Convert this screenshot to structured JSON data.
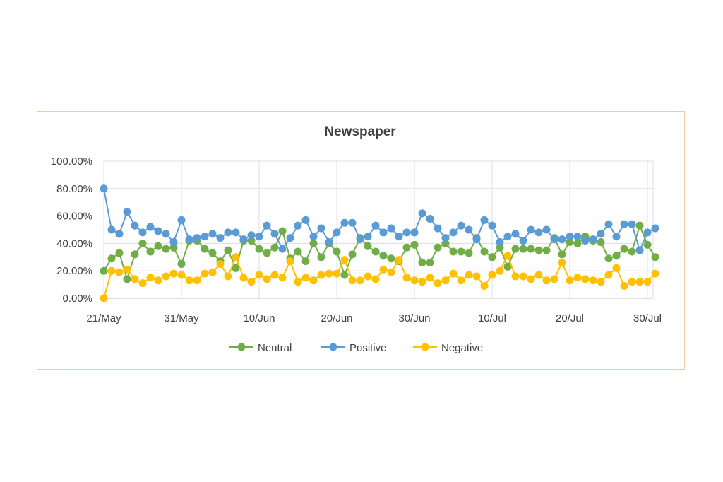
{
  "chart_data": {
    "type": "line",
    "title": "Newspaper",
    "xlabel": "",
    "ylabel": "",
    "ylim": [
      0,
      100
    ],
    "y_ticks": [
      "0.00%",
      "20.00%",
      "40.00%",
      "60.00%",
      "80.00%",
      "100.00%"
    ],
    "x_ticks": [
      "21/May",
      "31/May",
      "10/Jun",
      "20/Jun",
      "30/Jun",
      "10/Jul",
      "20/Jul",
      "30/Jul"
    ],
    "x_start": "21/May",
    "x_days": 72,
    "legend_position": "bottom",
    "grid": true,
    "series": [
      {
        "name": "Neutral",
        "color": "#70ad47",
        "values": [
          20,
          29,
          33,
          14,
          32,
          40,
          34,
          38,
          36,
          37,
          25,
          42,
          42,
          36,
          33,
          27,
          35,
          22,
          42,
          42,
          36,
          33,
          37,
          49,
          29,
          34,
          27,
          40,
          30,
          40,
          34,
          17,
          32,
          44,
          38,
          34,
          31,
          29,
          27,
          37,
          39,
          26,
          26,
          37,
          40,
          34,
          34,
          33,
          44,
          34,
          30,
          37,
          23,
          36,
          36,
          36,
          35,
          35,
          44,
          32,
          41,
          40,
          45,
          42,
          41,
          29,
          31,
          36,
          34,
          53,
          39,
          30
        ]
      },
      {
        "name": "Positive",
        "color": "#5b9bd5",
        "values": [
          80,
          50,
          47,
          63,
          53,
          48,
          52,
          49,
          47,
          41,
          57,
          43,
          44,
          45,
          47,
          44,
          48,
          48,
          43,
          46,
          45,
          53,
          47,
          36,
          44,
          53,
          57,
          45,
          51,
          41,
          48,
          55,
          55,
          43,
          45,
          53,
          48,
          51,
          45,
          48,
          48,
          62,
          58,
          51,
          44,
          48,
          53,
          50,
          43,
          57,
          53,
          41,
          45,
          47,
          42,
          50,
          48,
          50,
          43,
          43,
          45,
          45,
          42,
          43,
          47,
          54,
          45,
          54,
          54,
          35,
          48,
          51
        ]
      },
      {
        "name": "Negative",
        "color": "#ffc000",
        "values": [
          0,
          20,
          19,
          21,
          14,
          11,
          15,
          13,
          16,
          18,
          17,
          13,
          13,
          18,
          19,
          25,
          16,
          30,
          15,
          12,
          17,
          14,
          17,
          15,
          27,
          12,
          15,
          13,
          17,
          18,
          18,
          28,
          13,
          13,
          16,
          14,
          21,
          19,
          28,
          15,
          13,
          12,
          15,
          11,
          13,
          18,
          13,
          17,
          16,
          9,
          17,
          20,
          31,
          16,
          16,
          14,
          17,
          13,
          14,
          26,
          13,
          15,
          14,
          13,
          12,
          17,
          22,
          9,
          12,
          12,
          12,
          18
        ]
      }
    ]
  }
}
